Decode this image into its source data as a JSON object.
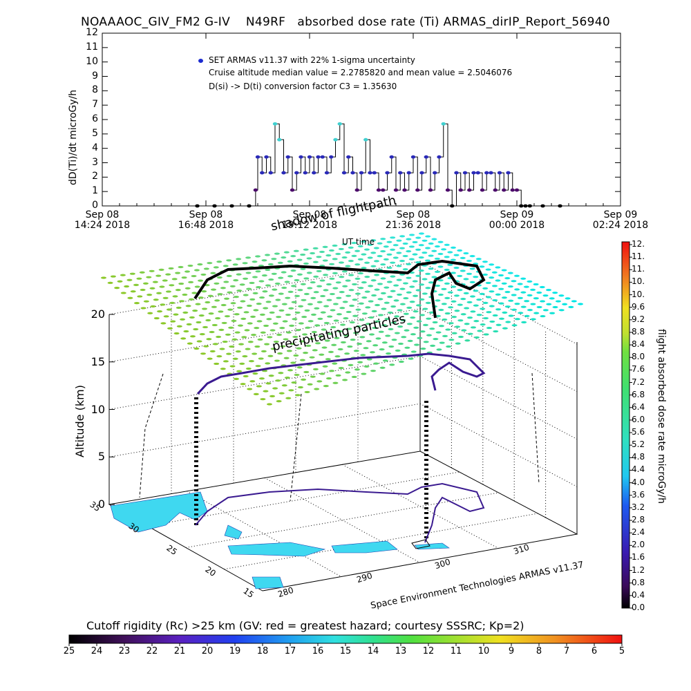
{
  "title": "NOAAAOC_GIV_FM2 G-IV    N49RF   absorbed dose rate (Ti) ARMAS_dirIP_Report_56940",
  "chart_data": [
    {
      "type": "scatter",
      "ylabel": "dD(Ti)/dt microGy/h",
      "xlabel": "UT time",
      "ylim": [
        0,
        12
      ],
      "yticks": [
        "0",
        "1",
        "2",
        "3",
        "4",
        "5",
        "6",
        "7",
        "8",
        "9",
        "10",
        "11",
        "12"
      ],
      "xticks": [
        {
          "line1": "Sep 08",
          "line2": "14:24 2018"
        },
        {
          "line1": "Sep 08",
          "line2": "16:48 2018"
        },
        {
          "line1": "Sep 08",
          "line2": "19:12 2018"
        },
        {
          "line1": "Sep 08",
          "line2": "21:36 2018"
        },
        {
          "line1": "Sep 09",
          "line2": "00:00 2018"
        },
        {
          "line1": "Sep 09",
          "line2": "02:24 2018"
        }
      ],
      "legend": [
        "SET ARMAS v11.37 with 22% 1-sigma uncertainty",
        "Cruise altitude median value = 2.2785820 and mean value = 2.5046076",
        "D(si) -> D(ti) conversion factor C3 = 1.35630"
      ],
      "colors": {
        "marker": "#2a2ab8",
        "cruise_marker": "#3030c0",
        "low_marker": "#4b0a6a",
        "high_marker": "#40d0d0",
        "line": "#000000"
      },
      "series": [
        {
          "name": "SET ARMAS v11.37 with 22% 1-sigma uncertainty",
          "x_hours_utc": [
            16.6,
            17.0,
            17.4,
            17.8,
            17.95,
            18.0,
            18.1,
            18.2,
            18.3,
            18.4,
            18.5,
            18.6,
            18.7,
            18.8,
            18.9,
            19.0,
            19.1,
            19.2,
            19.3,
            19.4,
            19.5,
            19.6,
            19.7,
            19.8,
            19.9,
            20.0,
            20.1,
            20.2,
            20.3,
            20.4,
            20.5,
            20.6,
            20.7,
            20.8,
            20.9,
            21.0,
            21.1,
            21.2,
            21.3,
            21.4,
            21.5,
            21.6,
            21.7,
            21.8,
            21.9,
            22.0,
            22.1,
            22.2,
            22.3,
            22.4,
            22.5,
            22.6,
            22.7,
            22.8,
            22.9,
            23.0,
            23.1,
            23.2,
            23.3,
            23.4,
            23.5,
            23.6,
            23.7,
            23.8,
            23.9,
            24.0,
            24.1,
            24.2,
            24.3,
            24.6,
            25.0
          ],
          "values": [
            0,
            0,
            0,
            0,
            1.1,
            3.4,
            2.3,
            3.4,
            2.3,
            5.7,
            4.6,
            2.3,
            3.4,
            1.1,
            2.3,
            3.4,
            2.3,
            3.4,
            2.3,
            3.4,
            3.4,
            2.3,
            3.4,
            4.6,
            5.7,
            2.3,
            3.4,
            2.3,
            1.1,
            2.3,
            4.6,
            2.3,
            2.3,
            1.1,
            1.1,
            2.3,
            3.4,
            1.1,
            2.3,
            1.1,
            2.3,
            3.4,
            1.1,
            2.3,
            3.4,
            1.1,
            2.3,
            3.4,
            5.7,
            1.1,
            0,
            2.3,
            1.1,
            2.3,
            1.1,
            2.3,
            2.3,
            1.1,
            2.3,
            2.3,
            1.1,
            2.3,
            1.1,
            2.3,
            1.1,
            1.1,
            0,
            0,
            0,
            0,
            0
          ]
        }
      ]
    },
    {
      "type": "scatter",
      "subtype": "3d-flight-track",
      "zlabel": "Altitude (km)",
      "zticks": [
        "0",
        "5",
        "10",
        "15",
        "20"
      ],
      "lat_ticks": [
        "35",
        "30",
        "25",
        "20",
        "15"
      ],
      "lon_ticks": [
        "280",
        "290",
        "300",
        "310"
      ],
      "annotations": [
        "shadow of flightpath",
        "precipitating particles"
      ],
      "footer": "Space Environment Technologies ARMAS v11.37",
      "colorbar_label": "flight absorbed dose rate microGy/h",
      "colorbar_range": [
        0,
        12
      ],
      "colorbar_ticks": [
        "12.",
        "11.",
        "11.",
        "10.",
        "10.",
        "9.6",
        "9.2",
        "8.8",
        "8.4",
        "8.0",
        "7.6",
        "7.2",
        "6.8",
        "6.4",
        "6.0",
        "5.6",
        "5.2",
        "4.8",
        "4.4",
        "4.0",
        "3.6",
        "3.2",
        "2.8",
        "2.4",
        "2.0",
        "1.6",
        "1.2",
        "0.8",
        "0.4",
        "0.0"
      ]
    },
    {
      "type": "heatmap",
      "subtype": "horizontal-colorbar",
      "title": "Cutoff rigidity (Rc) >25 km (GV: red = greatest hazard; courtesy SSSRC; Kp=2)",
      "ticks": [
        "25",
        "24",
        "23",
        "22",
        "21",
        "20",
        "19",
        "18",
        "17",
        "16",
        "15",
        "14",
        "13",
        "12",
        "11",
        "10",
        "9",
        "8",
        "7",
        "6",
        "5"
      ]
    }
  ]
}
